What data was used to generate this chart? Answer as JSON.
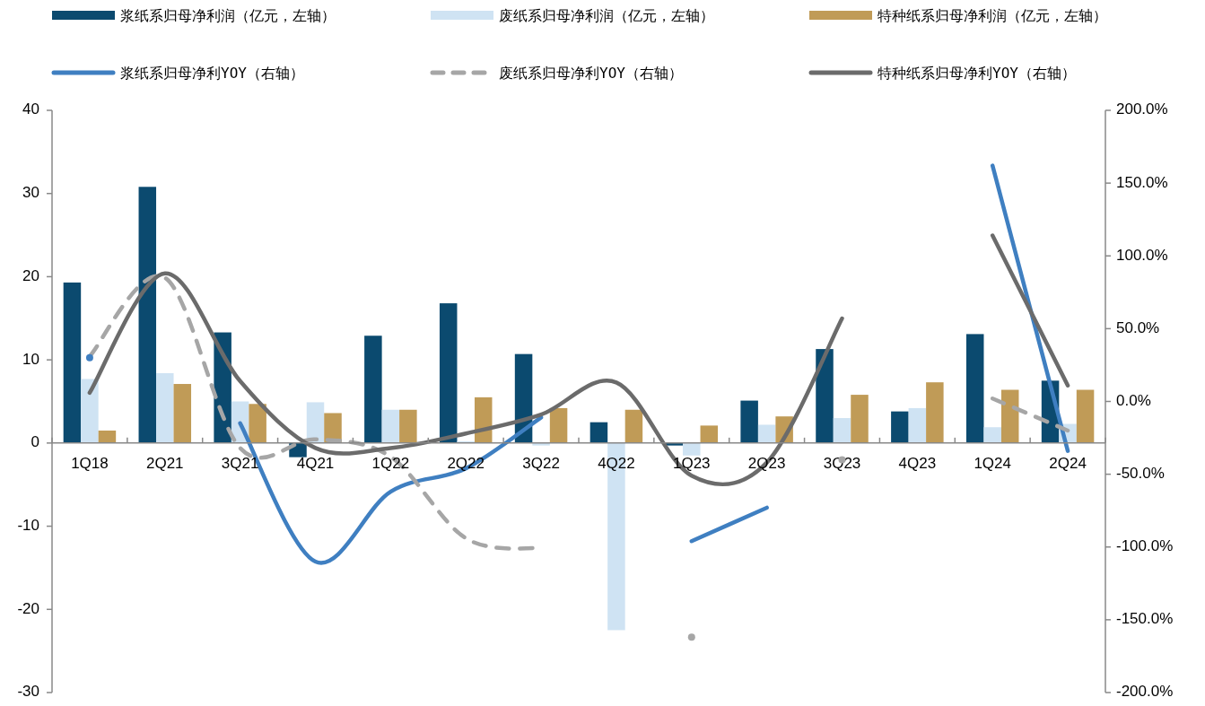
{
  "chart_data": {
    "type": "bar",
    "categories": [
      "1Q18",
      "2Q21",
      "3Q21",
      "4Q21",
      "1Q22",
      "2Q22",
      "3Q22",
      "4Q22",
      "1Q23",
      "2Q23",
      "3Q23",
      "4Q23",
      "1Q24",
      "2Q24"
    ],
    "series": [
      {
        "name": "浆纸系归母净利润（亿元，左轴）",
        "type": "bar",
        "color": "#0b4a6f",
        "values": [
          19.3,
          30.8,
          13.3,
          -1.7,
          12.9,
          16.8,
          10.7,
          2.5,
          -0.3,
          5.1,
          11.3,
          3.8,
          13.1,
          7.5
        ]
      },
      {
        "name": "废纸系归母净利润（亿元，左轴）",
        "type": "bar",
        "color": "#cfe3f3",
        "values": [
          7.7,
          8.4,
          5.0,
          4.9,
          4.0,
          0.2,
          -0.3,
          -22.5,
          -1.5,
          2.2,
          3.0,
          4.2,
          1.9,
          2.3
        ]
      },
      {
        "name": "特种纸系归母净利润（亿元，左轴）",
        "type": "bar",
        "color": "#c09b57",
        "values": [
          1.5,
          7.1,
          4.7,
          3.6,
          4.0,
          5.5,
          4.2,
          4.0,
          2.1,
          3.2,
          5.8,
          7.3,
          6.4,
          6.4
        ]
      },
      {
        "name": "浆纸系归母净利YOY（右轴）",
        "type": "line",
        "axis": "y2",
        "color": "#3f7fc1",
        "line_style": "solid",
        "values": [
          30,
          null,
          -15,
          -110,
          -62,
          -46,
          -11,
          null,
          -96,
          -73,
          null,
          null,
          162,
          -34
        ]
      },
      {
        "name": "废纸系归母净利YOY（右轴）",
        "type": "line",
        "axis": "y2",
        "color": "#a6a6a6",
        "line_style": "dashed",
        "values": [
          31,
          85,
          -32,
          -26,
          -38,
          -94,
          -101,
          null,
          -162,
          null,
          -40,
          null,
          2,
          -20
        ]
      },
      {
        "name": "特种纸系归母净利YOY（右轴）",
        "type": "line",
        "axis": "y2",
        "color": "#6b6b6b",
        "line_style": "solid",
        "values": [
          6,
          88,
          14,
          -32,
          -32,
          -22,
          -9,
          13,
          -51,
          -42,
          57,
          null,
          114,
          11
        ]
      }
    ],
    "ylim": [
      -30,
      40
    ],
    "yticks": [
      -30,
      -20,
      -10,
      0,
      10,
      20,
      30,
      40
    ],
    "y2lim": [
      -200,
      200
    ],
    "y2ticks": [
      {
        "value": -200,
        "label": "-200.0%"
      },
      {
        "value": -150,
        "label": "-150.0%"
      },
      {
        "value": -100,
        "label": "-100.0%"
      },
      {
        "value": -50,
        "label": "-50.0%"
      },
      {
        "value": 0,
        "label": "0.0%"
      },
      {
        "value": 50,
        "label": "50.0%"
      },
      {
        "value": 100,
        "label": "100.0%"
      },
      {
        "value": 150,
        "label": "150.0%"
      },
      {
        "value": 200,
        "label": "200.0%"
      }
    ],
    "legend": "top",
    "grid": false
  }
}
